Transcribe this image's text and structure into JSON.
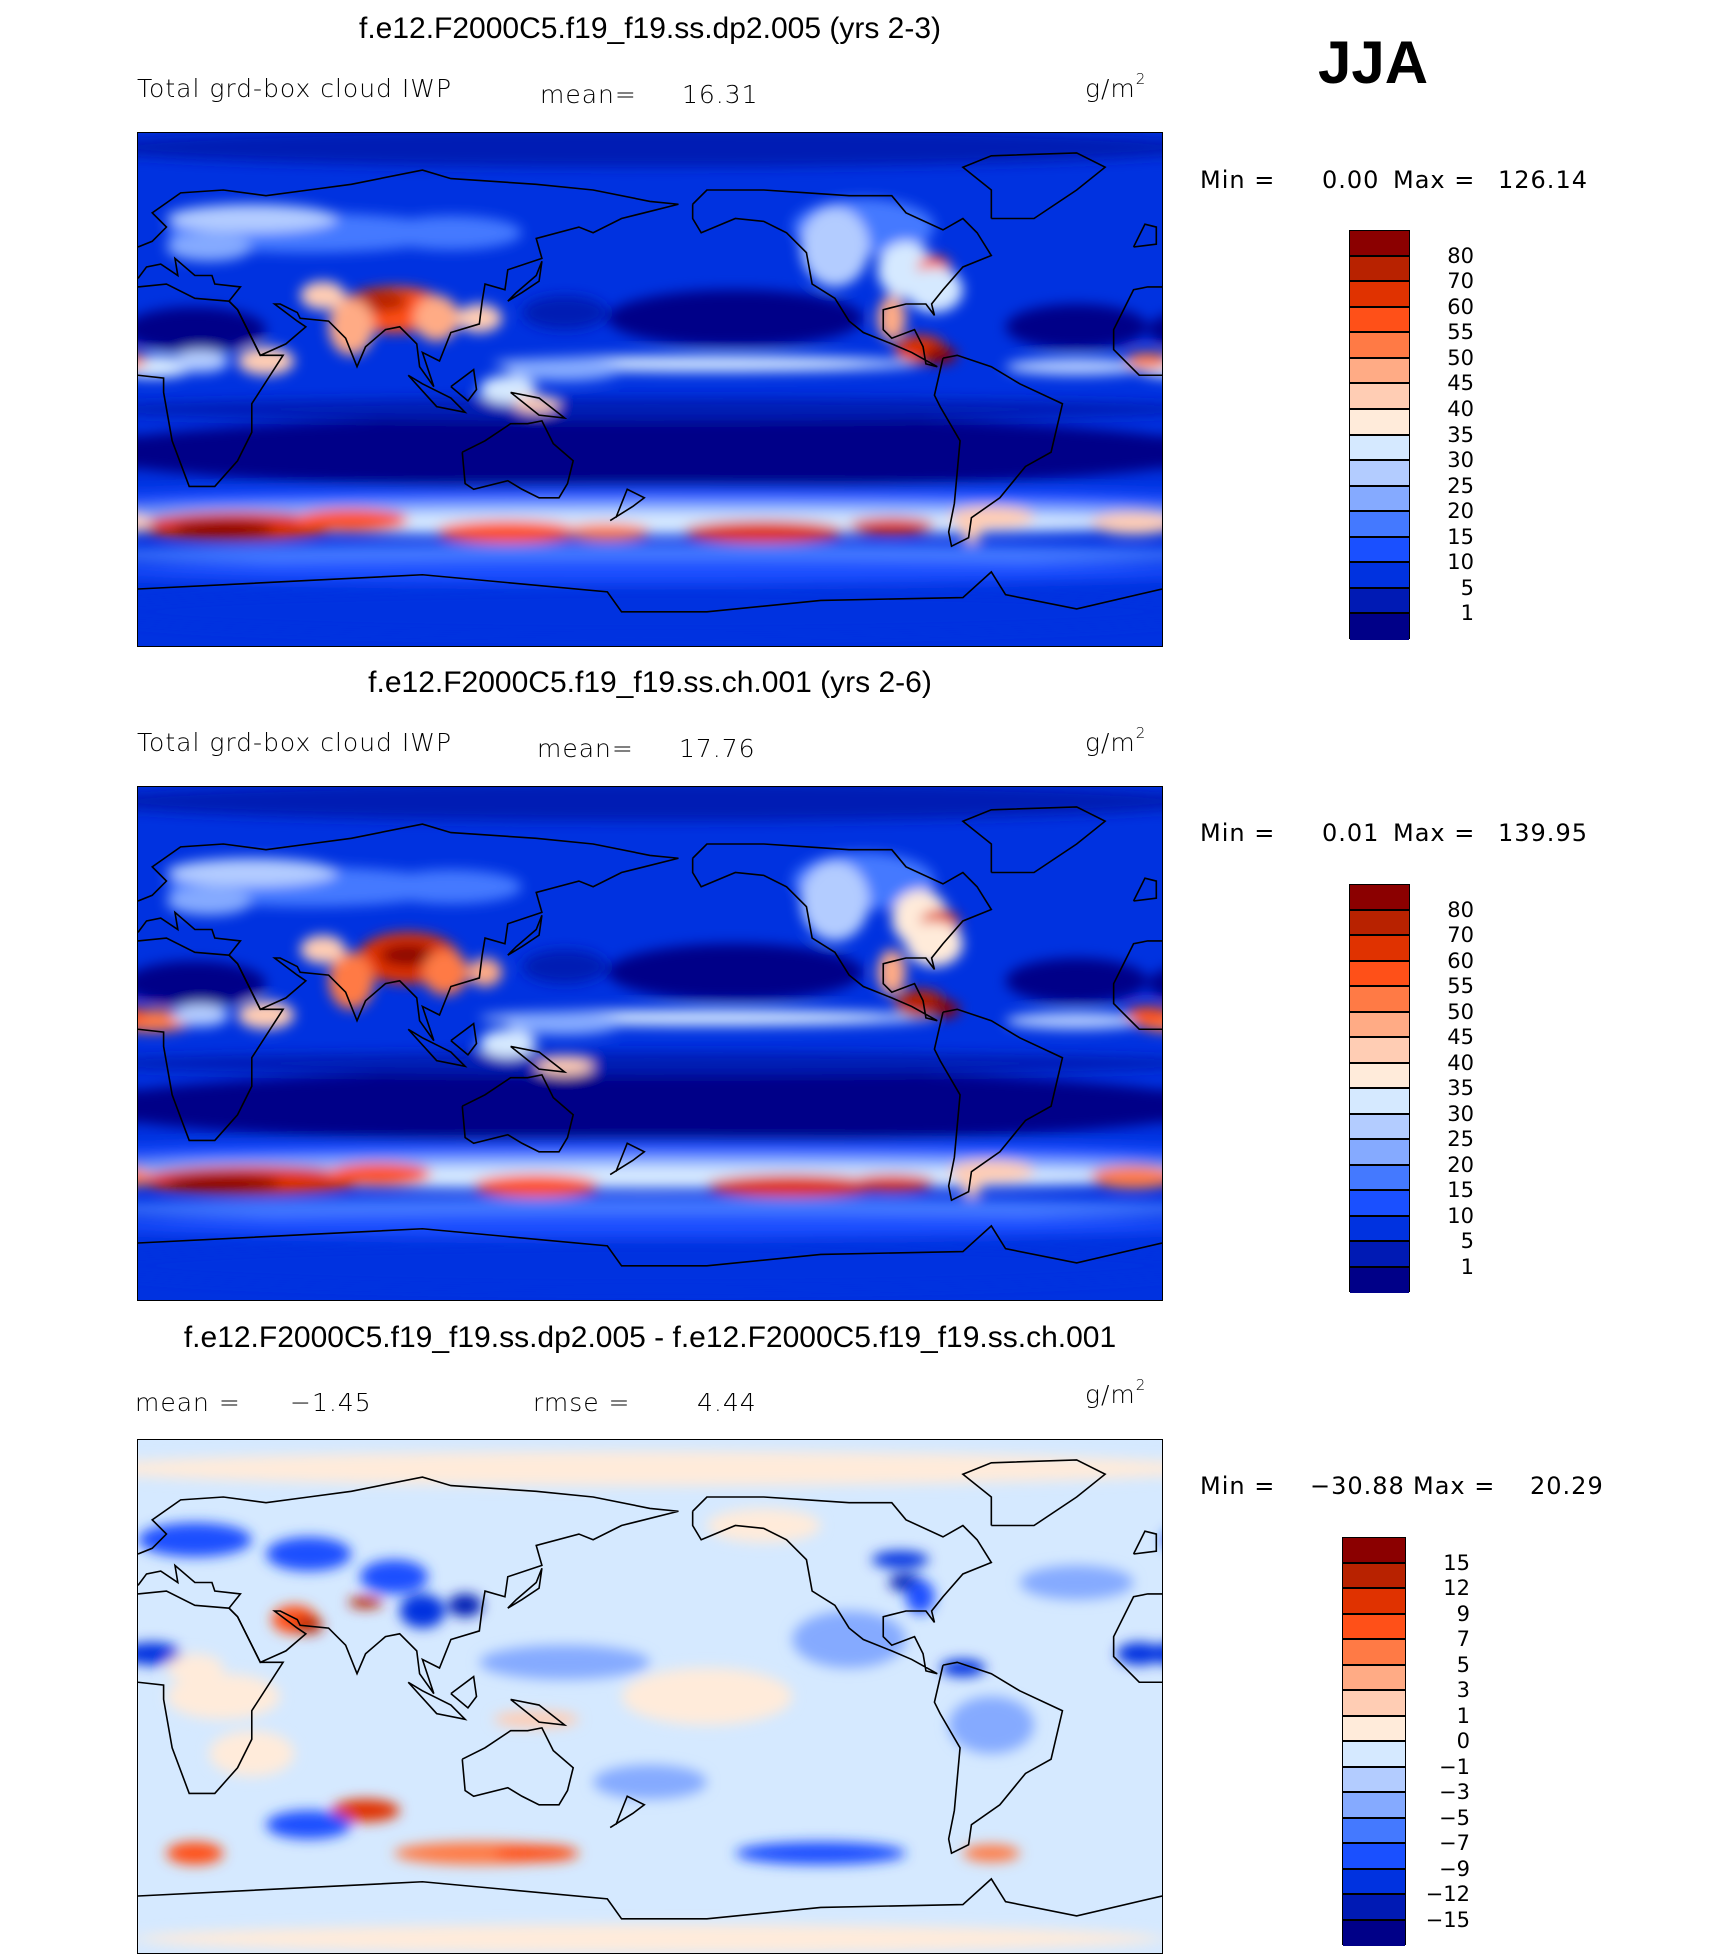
{
  "season": "JJA",
  "palette": [
    "#8b0000",
    "#b82200",
    "#e03200",
    "#ff5018",
    "#ff7a45",
    "#ffab85",
    "#ffcdb4",
    "#ffebda",
    "#d5e9ff",
    "#b3ccff",
    "#85aaff",
    "#4479ff",
    "#1a50ff",
    "#0032e0",
    "#001ab4",
    "#000088"
  ],
  "panels": [
    {
      "title": "f.e12.F2000C5.f19_f19.ss.dp2.005 (yrs 2-3)",
      "variable": "Total grd-box cloud IWP",
      "stat1_label": "mean=",
      "stat1_value": "16.31",
      "unit": "g/m",
      "unit_exp": "2",
      "min_label": "Min =",
      "min_value": "0.00",
      "max_label": "Max =",
      "max_value": "126.14",
      "colorbar_labels": [
        "80",
        "70",
        "60",
        "55",
        "50",
        "45",
        "40",
        "35",
        "30",
        "25",
        "20",
        "15",
        "10",
        "5",
        "1"
      ]
    },
    {
      "title": "f.e12.F2000C5.f19_f19.ss.ch.001 (yrs 2-6)",
      "variable": "Total grd-box cloud IWP",
      "stat1_label": "mean=",
      "stat1_value": "17.76",
      "unit": "g/m",
      "unit_exp": "2",
      "min_label": "Min =",
      "min_value": "0.01",
      "max_label": "Max =",
      "max_value": "139.95",
      "colorbar_labels": [
        "80",
        "70",
        "60",
        "55",
        "50",
        "45",
        "40",
        "35",
        "30",
        "25",
        "20",
        "15",
        "10",
        "5",
        "1"
      ]
    },
    {
      "title": "f.e12.F2000C5.f19_f19.ss.dp2.005 - f.e12.F2000C5.f19_f19.ss.ch.001",
      "stat1_label": "mean =",
      "stat1_value": "−1.45",
      "stat2_label": "rmse =",
      "stat2_value": "4.44",
      "unit": "g/m",
      "unit_exp": "2",
      "min_label": "Min =",
      "min_value": "−30.88",
      "max_label": "Max =",
      "max_value": "20.29",
      "colorbar_labels": [
        "15",
        "12",
        "9",
        "7",
        "5",
        "3",
        "1",
        "0",
        "−1",
        "−3",
        "−5",
        "−7",
        "−9",
        "−12",
        "−15"
      ]
    }
  ]
}
